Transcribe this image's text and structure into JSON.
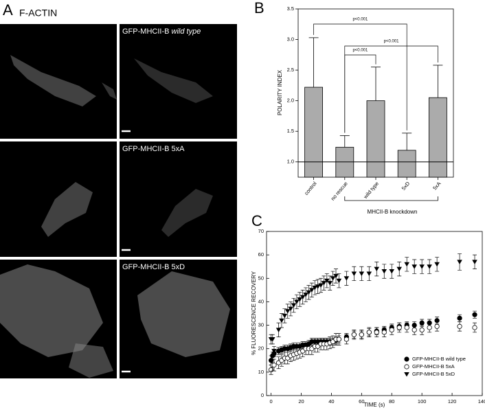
{
  "panel_a": {
    "label": "A",
    "title": "F-ACTIN",
    "rows": [
      {
        "construct": "GFP-MHCII-B",
        "variant": "wild type"
      },
      {
        "construct": "GFP-MHCII-B",
        "variant": "5xA"
      },
      {
        "construct": "GFP-MHCII-B",
        "variant": "5xD"
      }
    ]
  },
  "chart_data": [
    {
      "type": "bar",
      "label": "B",
      "ylabel": "POLARITY INDEX",
      "categories": [
        "control",
        "no rescue",
        "wild type",
        "5xD",
        "5xA"
      ],
      "values": [
        2.22,
        1.24,
        2.0,
        1.19,
        2.05
      ],
      "errors": [
        0.81,
        0.19,
        0.55,
        0.28,
        0.53
      ],
      "color": "#ababab",
      "ylim": [
        0.75,
        3.5
      ],
      "yticks": [
        {
          "value": 1,
          "label": "1.0"
        },
        1.5,
        {
          "value": 2,
          "label": "2.0"
        },
        2.5,
        {
          "value": 3,
          "label": "3.0"
        },
        3.5
      ],
      "hline": 1,
      "annotations": [
        "p<0.001",
        "p<0.001",
        "p<0.001"
      ],
      "group_label": "MHCII-B knockdown"
    },
    {
      "type": "scatter",
      "label": "C",
      "xlabel": "TIME (s)",
      "ylabel": "% FLUORESCENCE RECOVERY",
      "x": [
        0,
        1,
        2,
        5,
        7,
        9,
        11,
        13,
        15,
        17,
        19,
        21,
        23,
        25,
        27,
        29,
        31,
        33,
        35,
        37,
        39,
        41,
        43,
        45,
        50,
        55,
        60,
        65,
        70,
        75,
        80,
        85,
        90,
        95,
        100,
        105,
        110,
        125,
        135
      ],
      "series": [
        {
          "name": "GFP-MHCII-B wild type",
          "marker": "filled-circle",
          "color": "#000",
          "values": [
            15,
            17,
            18,
            19,
            19.5,
            20,
            20,
            20.5,
            21,
            21,
            21,
            21.5,
            21.5,
            22,
            23,
            23,
            23,
            23,
            23,
            23,
            23,
            23,
            23.5,
            24,
            25,
            26,
            26,
            27,
            27.5,
            28,
            29,
            29.5,
            30,
            30,
            31,
            31,
            32,
            33,
            34.5
          ],
          "errors": [
            2,
            1.5,
            1.5,
            1.5,
            1.5,
            1.5,
            1.5,
            1.5,
            1.5,
            1.5,
            1.5,
            1.5,
            1.5,
            1.5,
            1.5,
            1.5,
            1.5,
            1.5,
            1.5,
            1.5,
            1.5,
            1.5,
            1.5,
            1.5,
            1.5,
            1.5,
            1.5,
            1.5,
            1.5,
            1.5,
            1.5,
            1.5,
            1.5,
            1.5,
            1.5,
            1.5,
            1.5,
            1.5,
            1.5
          ]
        },
        {
          "name": "GFP-MHCII-B 5xA",
          "marker": "open-circle",
          "color": "#000",
          "values": [
            11,
            13,
            13,
            14,
            15,
            16,
            16,
            17,
            17.5,
            18,
            18.5,
            19,
            20,
            20,
            20,
            21,
            21,
            22,
            22,
            22,
            22.5,
            23,
            24,
            24,
            24,
            26,
            26,
            27,
            27,
            27,
            28,
            29,
            29,
            28,
            28,
            29,
            29.5,
            29.5,
            29
          ],
          "errors": [
            2,
            2.5,
            2.5,
            2.5,
            2.5,
            2.5,
            2.5,
            2.5,
            2.5,
            2.5,
            2.5,
            2.5,
            2.5,
            2.5,
            2.5,
            2.5,
            2.5,
            2.5,
            2.5,
            2.5,
            2.5,
            2.5,
            2.5,
            2.5,
            2,
            2,
            2,
            2,
            2,
            2,
            2,
            2,
            2,
            2,
            2,
            2,
            2,
            2,
            2
          ]
        },
        {
          "name": "GFP-MHCII-B 5xD",
          "marker": "triangle-down",
          "color": "#000",
          "values": [
            24,
            24,
            19,
            28,
            32,
            34,
            36,
            37,
            38.5,
            40,
            41,
            42,
            43,
            44,
            45,
            46,
            46.5,
            47,
            48,
            49,
            48,
            50,
            51,
            49,
            50,
            52,
            52,
            52,
            54,
            53,
            53,
            54,
            56,
            55,
            55,
            55,
            56,
            57,
            57
          ],
          "errors": [
            2,
            2,
            2,
            3,
            3,
            3,
            3,
            3,
            3,
            3,
            3,
            3,
            3,
            3,
            3,
            3,
            3,
            3,
            3,
            3,
            3,
            3,
            3,
            3,
            3,
            3,
            3,
            3,
            3,
            3,
            3,
            3,
            3,
            3,
            3,
            3,
            3,
            3.5,
            3
          ]
        }
      ],
      "xlim": [
        -3,
        140
      ],
      "xticks": [
        0,
        20,
        40,
        60,
        80,
        100,
        120,
        140
      ],
      "ylim": [
        0,
        70
      ],
      "yticks": [
        0,
        10,
        20,
        30,
        40,
        50,
        60,
        70
      ],
      "legend": "lower-right"
    }
  ]
}
